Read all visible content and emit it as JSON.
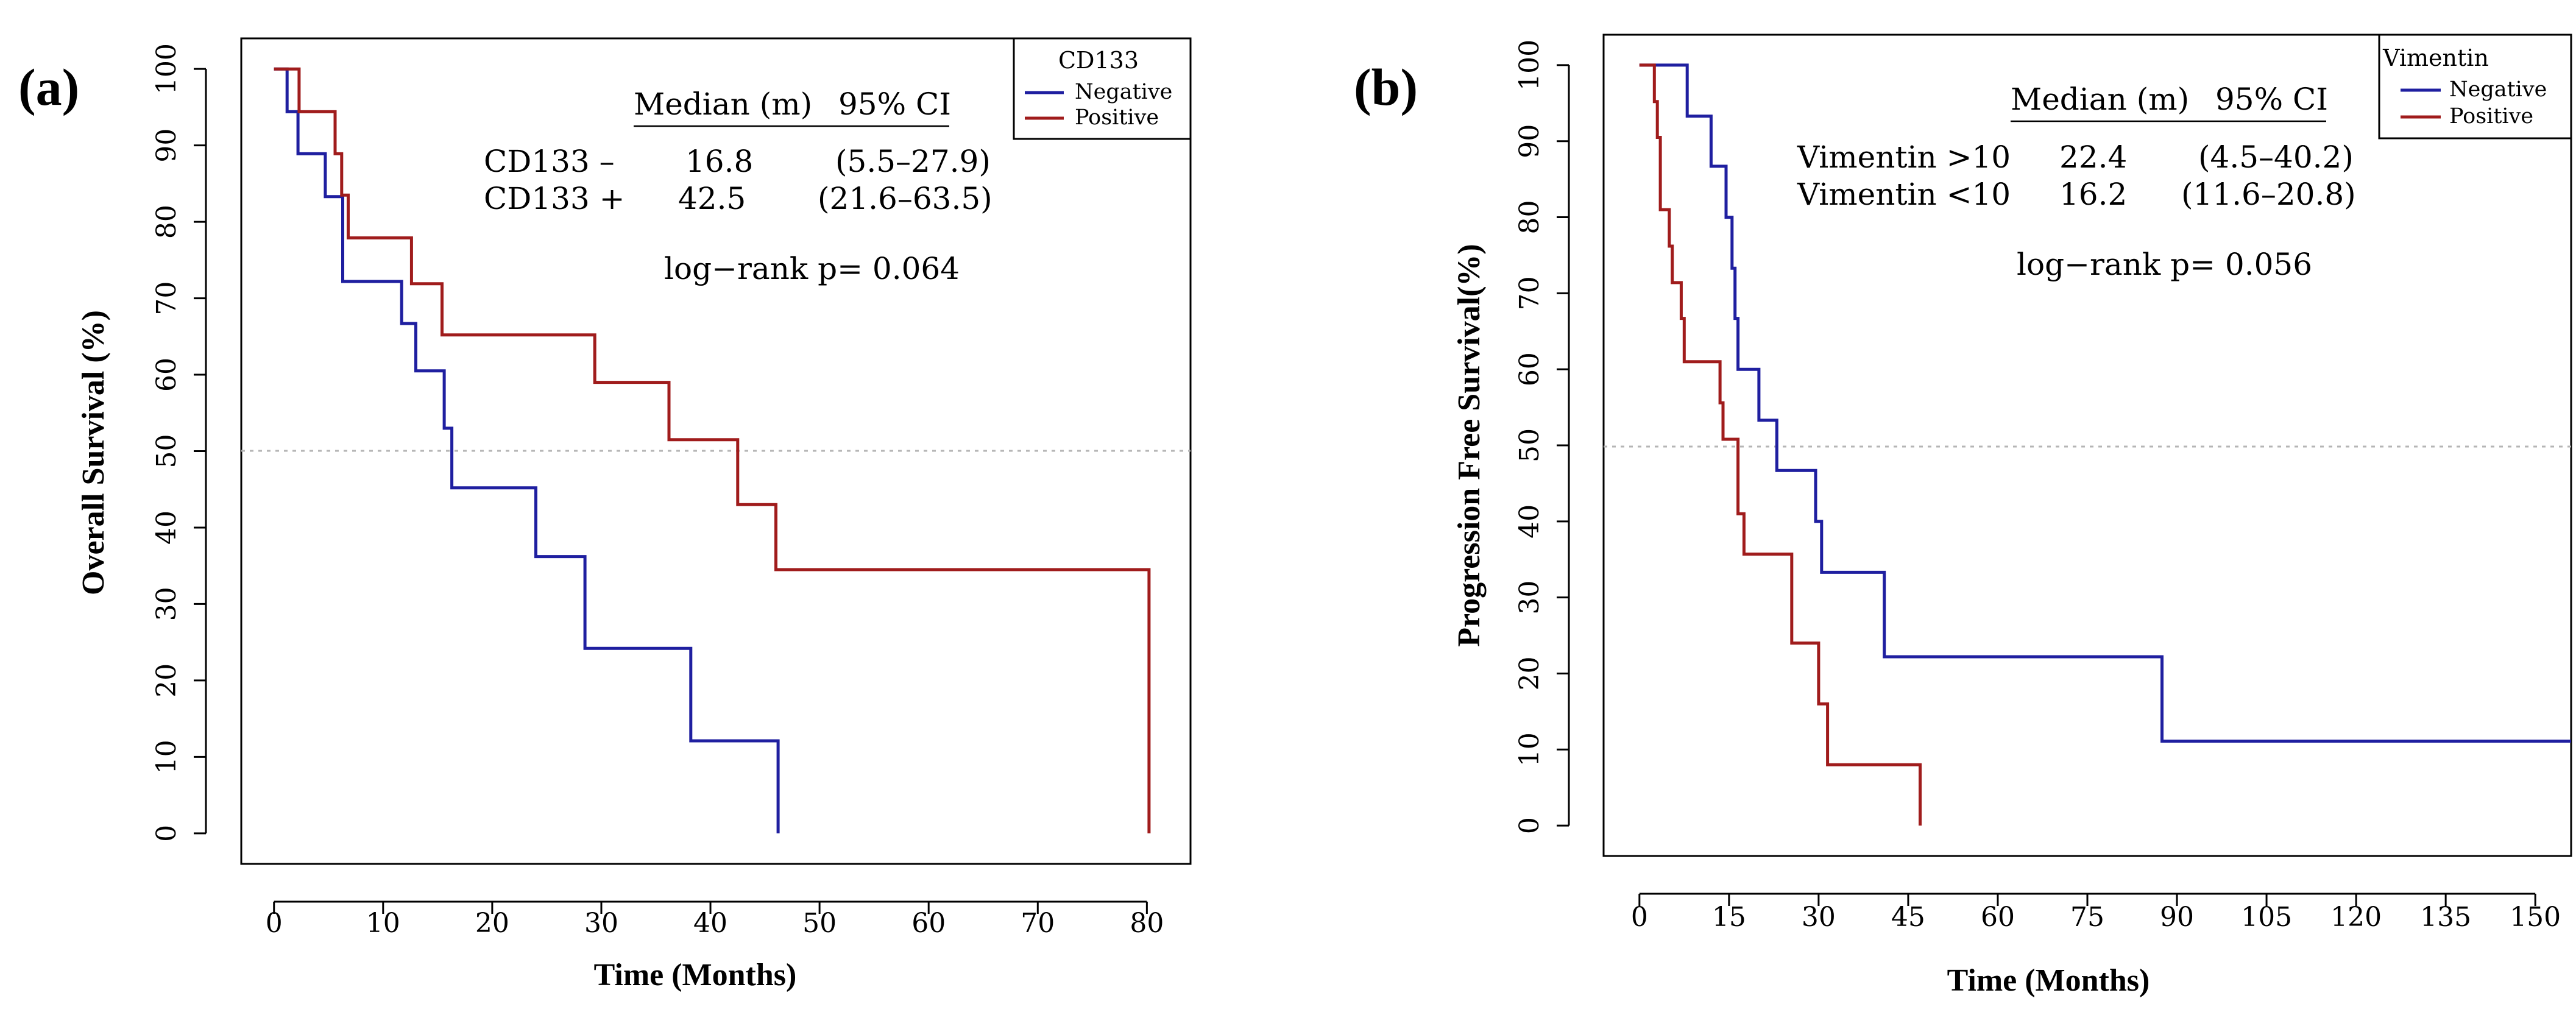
{
  "chart_data": [
    {
      "type": "line",
      "subtype": "kaplan-meier",
      "panel_label": "(a)",
      "xlabel": "Time (Months)",
      "ylabel": "Overall Survival (%)",
      "xlim": [
        -3,
        84
      ],
      "ylim": [
        -4,
        104
      ],
      "xticks": [
        0,
        10,
        20,
        30,
        40,
        50,
        60,
        70,
        80
      ],
      "yticks": [
        0,
        10,
        20,
        30,
        40,
        50,
        60,
        70,
        80,
        90,
        100
      ],
      "reference_line_y": 50,
      "legend": {
        "title": "CD133",
        "position": "top-right",
        "entries": [
          "Negative",
          "Positive"
        ]
      },
      "series": [
        {
          "name": "Negative",
          "color": "#1f1fa0",
          "points": [
            [
              0,
              100
            ],
            [
              1.2,
              100
            ],
            [
              1.2,
              94.4
            ],
            [
              2.2,
              94.4
            ],
            [
              2.2,
              88.9
            ],
            [
              4.7,
              88.9
            ],
            [
              4.7,
              83.3
            ],
            [
              6.3,
              83.3
            ],
            [
              6.3,
              72.2
            ],
            [
              11.7,
              72.2
            ],
            [
              11.7,
              66.7
            ],
            [
              13.0,
              66.7
            ],
            [
              13.0,
              60.5
            ],
            [
              15.6,
              60.5
            ],
            [
              15.6,
              53
            ],
            [
              16.3,
              53
            ],
            [
              16.3,
              45.2
            ],
            [
              16.8,
              45.2
            ],
            [
              24.0,
              45.2
            ],
            [
              24.0,
              36.2
            ],
            [
              28.5,
              36.2
            ],
            [
              28.5,
              24.2
            ],
            [
              38.2,
              24.2
            ],
            [
              38.2,
              12.1
            ],
            [
              46.2,
              12.1
            ],
            [
              46.2,
              0
            ]
          ]
        },
        {
          "name": "Positive",
          "color": "#a01c1c",
          "points": [
            [
              0,
              100
            ],
            [
              2.3,
              100
            ],
            [
              2.3,
              94.4
            ],
            [
              5.6,
              94.4
            ],
            [
              5.6,
              88.9
            ],
            [
              6.2,
              88.9
            ],
            [
              6.2,
              83.5
            ],
            [
              6.8,
              83.5
            ],
            [
              6.8,
              77.9
            ],
            [
              12.6,
              77.9
            ],
            [
              12.6,
              71.9
            ],
            [
              15.4,
              71.9
            ],
            [
              15.4,
              65.2
            ],
            [
              29.4,
              65.2
            ],
            [
              29.4,
              59
            ],
            [
              36.2,
              59
            ],
            [
              36.2,
              51.5
            ],
            [
              42.5,
              51.5
            ],
            [
              42.5,
              43
            ],
            [
              46.0,
              43
            ],
            [
              46.0,
              34.5
            ],
            [
              80.2,
              34.5
            ],
            [
              80.2,
              0
            ]
          ]
        }
      ],
      "table": {
        "header_median": "Median (m)",
        "header_ci": "95% CI",
        "rows": [
          {
            "label": "CD133  –",
            "median": "16.8",
            "ci": "(5.5–27.9)"
          },
          {
            "label": "CD133  +",
            "median": "42.5",
            "ci": "(21.6–63.5)"
          }
        ],
        "logrank": "log−rank  p= 0.064"
      }
    },
    {
      "type": "line",
      "subtype": "kaplan-meier",
      "panel_label": "(b)",
      "xlabel": "Time (Months)",
      "ylabel": "Progression Free Survival(%)",
      "xlim": [
        -6,
        156
      ],
      "ylim": [
        -4,
        104
      ],
      "xticks": [
        0,
        15,
        30,
        45,
        60,
        75,
        90,
        105,
        120,
        135,
        150
      ],
      "yticks": [
        0,
        10,
        20,
        30,
        40,
        50,
        60,
        70,
        80,
        90,
        100
      ],
      "reference_line_y": 50,
      "legend": {
        "title": "Vimentin",
        "position": "top-right",
        "entries": [
          "Negative",
          "Positive"
        ]
      },
      "series": [
        {
          "name": "Negative",
          "color": "#1f1fa0",
          "points": [
            [
              0,
              100
            ],
            [
              8,
              100
            ],
            [
              8,
              93.3
            ],
            [
              12,
              93.3
            ],
            [
              12,
              86.7
            ],
            [
              14.5,
              86.7
            ],
            [
              14.5,
              80
            ],
            [
              15.5,
              80
            ],
            [
              15.5,
              73.3
            ],
            [
              16,
              73.3
            ],
            [
              16,
              66.7
            ],
            [
              16.5,
              66.7
            ],
            [
              16.5,
              60
            ],
            [
              20,
              60
            ],
            [
              20,
              53.3
            ],
            [
              23,
              53.3
            ],
            [
              23,
              46.7
            ],
            [
              29.5,
              46.7
            ],
            [
              29.5,
              40
            ],
            [
              30.5,
              40
            ],
            [
              30.5,
              33.3
            ],
            [
              41,
              33.3
            ],
            [
              41,
              22.2
            ],
            [
              87.5,
              22.2
            ],
            [
              87.5,
              11.1
            ],
            [
              156,
              11.1
            ]
          ]
        },
        {
          "name": "Positive",
          "color": "#a01c1c",
          "points": [
            [
              0,
              100
            ],
            [
              2.5,
              100
            ],
            [
              2.5,
              95.2
            ],
            [
              3,
              95.2
            ],
            [
              3,
              90.5
            ],
            [
              3.5,
              90.5
            ],
            [
              3.5,
              81
            ],
            [
              5,
              81
            ],
            [
              5,
              76.2
            ],
            [
              5.5,
              76.2
            ],
            [
              5.5,
              71.4
            ],
            [
              7,
              71.4
            ],
            [
              7,
              66.7
            ],
            [
              7.5,
              66.7
            ],
            [
              7.5,
              61
            ],
            [
              13.5,
              61
            ],
            [
              13.5,
              55.6
            ],
            [
              14,
              55.6
            ],
            [
              14,
              50.8
            ],
            [
              16.5,
              50.8
            ],
            [
              16.5,
              41
            ],
            [
              17.5,
              41
            ],
            [
              17.5,
              35.7
            ],
            [
              25.5,
              35.7
            ],
            [
              25.5,
              24
            ],
            [
              30,
              24
            ],
            [
              30,
              16
            ],
            [
              31.5,
              16
            ],
            [
              31.5,
              8
            ],
            [
              47,
              8
            ],
            [
              47,
              0
            ]
          ]
        }
      ],
      "table": {
        "header_median": "Median (m)",
        "header_ci": "95% CI",
        "rows": [
          {
            "label": "Vimentin  >10",
            "median": "22.4",
            "ci": "(4.5–40.2)"
          },
          {
            "label": "Vimentin  <10",
            "median": "16.2",
            "ci": "(11.6–20.8)"
          }
        ],
        "logrank": "log−rank  p= 0.056"
      }
    }
  ]
}
